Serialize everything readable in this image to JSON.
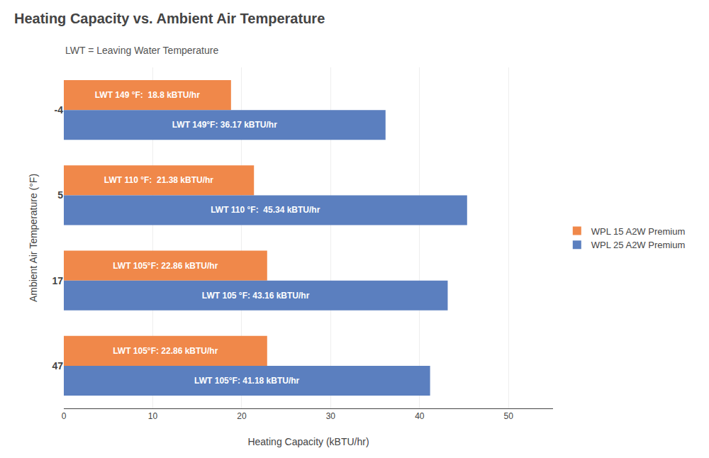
{
  "chart_data": {
    "type": "bar",
    "orientation": "horizontal",
    "title": "Heating Capacity vs. Ambient Air Temperature",
    "subtitle": "LWT = Leaving Water Temperature",
    "xlabel": "Heating Capacity (kBTU/hr)",
    "ylabel": "Ambient Air Temperature (°F)",
    "categories": [
      "-4",
      "5",
      "17",
      "47"
    ],
    "series": [
      {
        "name": "WPL 15 A2W Premium",
        "color": "#F0884A",
        "values": [
          18.8,
          21.38,
          22.86,
          22.86
        ],
        "value_labels": [
          "LWT 149 °F:  18.8 kBTU/hr",
          "LWT 110 °F:  21.38 kBTU/hr",
          "LWT 105°F: 22.86 kBTU/hr",
          "LWT 105°F: 22.86 kBTU/hr"
        ]
      },
      {
        "name": "WPL 25 A2W Premium",
        "color": "#5B7FBF",
        "values": [
          36.17,
          45.34,
          43.16,
          41.18
        ],
        "value_labels": [
          "LWT 149°F: 36.17 kBTU/hr",
          "LWT 110 °F:  45.34 kBTU/hr",
          "LWT 105 °F: 43.16 kBTU/hr",
          "LWT 105°F: 41.18 kBTU/hr"
        ]
      }
    ],
    "xlim": [
      0,
      55
    ],
    "xticks": [
      0,
      10,
      20,
      30,
      40,
      50
    ],
    "grid": true,
    "legend": "right"
  }
}
